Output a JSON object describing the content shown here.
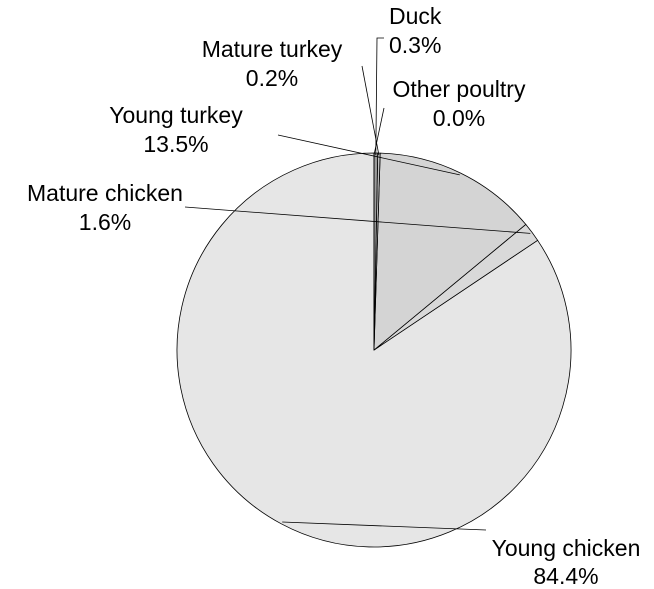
{
  "chart_data": {
    "type": "pie",
    "title": "",
    "slices": [
      {
        "label": "Young chicken",
        "value": 84.4,
        "value_label": "84.4%",
        "color": "#e6e6e6"
      },
      {
        "label": "Mature chicken",
        "value": 1.6,
        "value_label": "1.6%",
        "color": "#d9d9d9"
      },
      {
        "label": "Young turkey",
        "value": 13.5,
        "value_label": "13.5%",
        "color": "#d4d4d4"
      },
      {
        "label": "Mature turkey",
        "value": 0.2,
        "value_label": "0.2%",
        "color": "#bfbfbf"
      },
      {
        "label": "Duck",
        "value": 0.3,
        "value_label": "0.3%",
        "color": "#9a9a9a"
      },
      {
        "label": "Other poultry",
        "value": 0.0,
        "value_label": "0.0%",
        "color": "#7a7a7a"
      }
    ],
    "legend": "none",
    "start_angle": "top",
    "direction": "counter-clockwise",
    "stroke_color": "#000000"
  }
}
